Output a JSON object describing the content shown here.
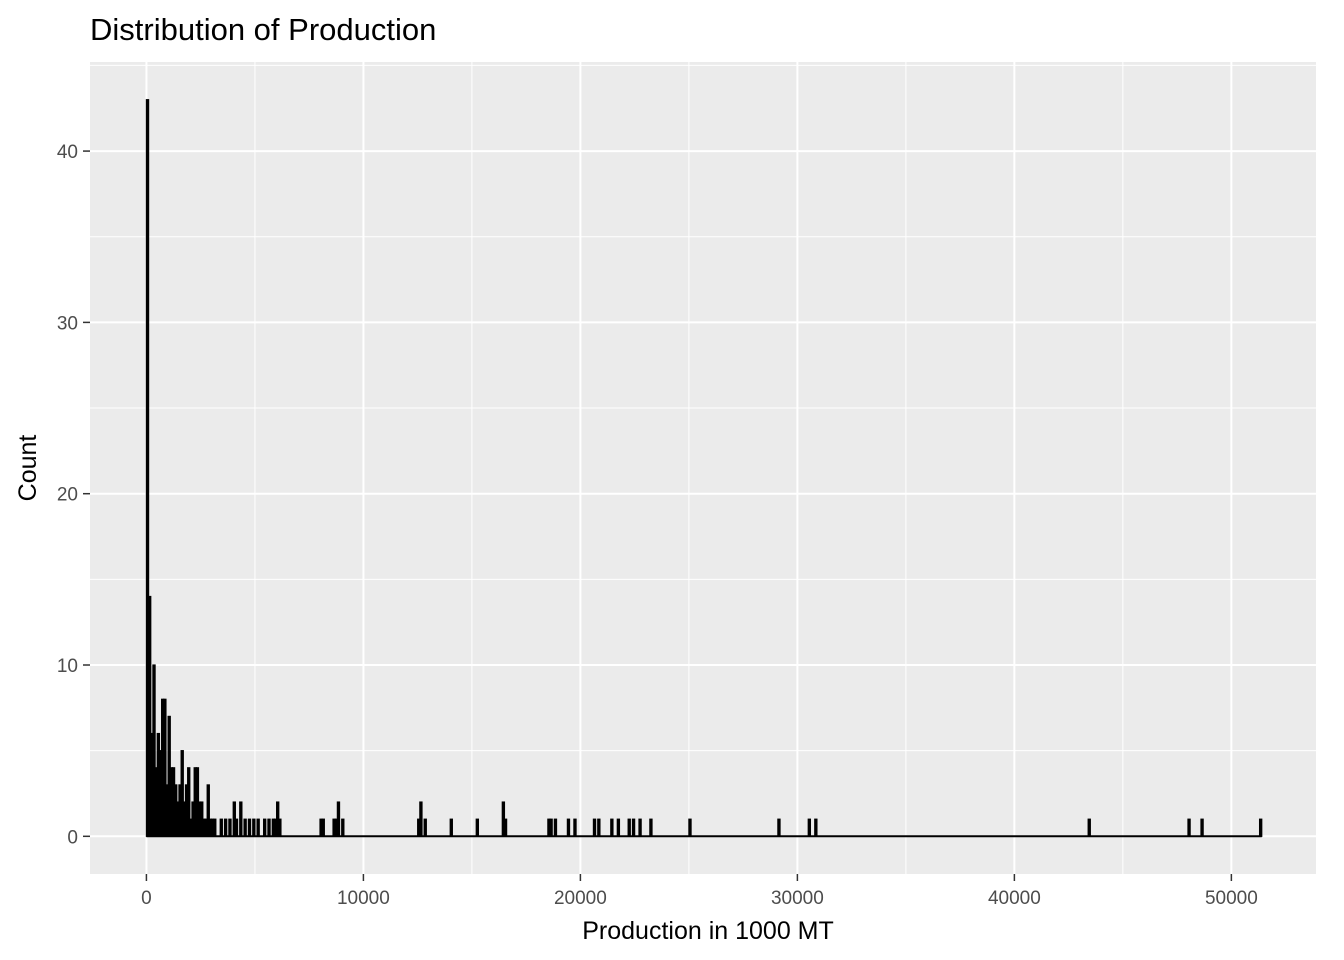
{
  "chart_data": {
    "type": "bar",
    "title": "Distribution of Production",
    "xlabel": "Production in 1000 MT",
    "ylabel": "Count",
    "xlim": [
      -2600,
      53900
    ],
    "ylim": [
      -2.2,
      45.2
    ],
    "x_ticks": [
      0,
      10000,
      20000,
      30000,
      40000,
      50000
    ],
    "x_tick_labels": [
      "0",
      "10000",
      "20000",
      "30000",
      "40000",
      "50000"
    ],
    "y_ticks": [
      0,
      10,
      20,
      30,
      40
    ],
    "y_tick_labels": [
      "0",
      "10",
      "20",
      "30",
      "40"
    ],
    "grid": true,
    "legend": "none",
    "bin_width": 100,
    "bar_color": "#000000",
    "panel_color": "#ebebeb",
    "bins": [
      {
        "x": 50,
        "count": 43
      },
      {
        "x": 150,
        "count": 14
      },
      {
        "x": 250,
        "count": 6
      },
      {
        "x": 350,
        "count": 10
      },
      {
        "x": 450,
        "count": 4
      },
      {
        "x": 550,
        "count": 6
      },
      {
        "x": 650,
        "count": 5
      },
      {
        "x": 750,
        "count": 8
      },
      {
        "x": 850,
        "count": 8
      },
      {
        "x": 950,
        "count": 3
      },
      {
        "x": 1050,
        "count": 7
      },
      {
        "x": 1150,
        "count": 4
      },
      {
        "x": 1250,
        "count": 4
      },
      {
        "x": 1350,
        "count": 3
      },
      {
        "x": 1450,
        "count": 2
      },
      {
        "x": 1550,
        "count": 3
      },
      {
        "x": 1650,
        "count": 5
      },
      {
        "x": 1750,
        "count": 2
      },
      {
        "x": 1850,
        "count": 3
      },
      {
        "x": 1950,
        "count": 4
      },
      {
        "x": 2050,
        "count": 1
      },
      {
        "x": 2150,
        "count": 2
      },
      {
        "x": 2250,
        "count": 4
      },
      {
        "x": 2350,
        "count": 4
      },
      {
        "x": 2450,
        "count": 2
      },
      {
        "x": 2550,
        "count": 2
      },
      {
        "x": 2650,
        "count": 1
      },
      {
        "x": 2750,
        "count": 1
      },
      {
        "x": 2850,
        "count": 3
      },
      {
        "x": 2950,
        "count": 1
      },
      {
        "x": 3050,
        "count": 1
      },
      {
        "x": 3150,
        "count": 1
      },
      {
        "x": 3450,
        "count": 1
      },
      {
        "x": 3650,
        "count": 1
      },
      {
        "x": 3850,
        "count": 1
      },
      {
        "x": 4050,
        "count": 2
      },
      {
        "x": 4150,
        "count": 1
      },
      {
        "x": 4350,
        "count": 2
      },
      {
        "x": 4550,
        "count": 1
      },
      {
        "x": 4750,
        "count": 1
      },
      {
        "x": 4950,
        "count": 1
      },
      {
        "x": 5150,
        "count": 1
      },
      {
        "x": 5450,
        "count": 1
      },
      {
        "x": 5650,
        "count": 1
      },
      {
        "x": 5850,
        "count": 1
      },
      {
        "x": 5950,
        "count": 1
      },
      {
        "x": 6050,
        "count": 2
      },
      {
        "x": 6150,
        "count": 1
      },
      {
        "x": 8050,
        "count": 1
      },
      {
        "x": 8150,
        "count": 1
      },
      {
        "x": 8650,
        "count": 1
      },
      {
        "x": 8750,
        "count": 1
      },
      {
        "x": 8850,
        "count": 2
      },
      {
        "x": 9050,
        "count": 1
      },
      {
        "x": 12550,
        "count": 1
      },
      {
        "x": 12650,
        "count": 2
      },
      {
        "x": 12850,
        "count": 1
      },
      {
        "x": 14050,
        "count": 1
      },
      {
        "x": 15250,
        "count": 1
      },
      {
        "x": 16450,
        "count": 2
      },
      {
        "x": 16550,
        "count": 1
      },
      {
        "x": 18550,
        "count": 1
      },
      {
        "x": 18650,
        "count": 1
      },
      {
        "x": 18850,
        "count": 1
      },
      {
        "x": 19450,
        "count": 1
      },
      {
        "x": 19750,
        "count": 1
      },
      {
        "x": 20650,
        "count": 1
      },
      {
        "x": 20850,
        "count": 1
      },
      {
        "x": 21450,
        "count": 1
      },
      {
        "x": 21750,
        "count": 1
      },
      {
        "x": 22250,
        "count": 1
      },
      {
        "x": 22450,
        "count": 1
      },
      {
        "x": 22750,
        "count": 1
      },
      {
        "x": 23250,
        "count": 1
      },
      {
        "x": 25050,
        "count": 1
      },
      {
        "x": 29150,
        "count": 1
      },
      {
        "x": 30550,
        "count": 1
      },
      {
        "x": 30850,
        "count": 1
      },
      {
        "x": 43450,
        "count": 1
      },
      {
        "x": 48050,
        "count": 1
      },
      {
        "x": 48650,
        "count": 1
      },
      {
        "x": 51350,
        "count": 1
      }
    ]
  }
}
